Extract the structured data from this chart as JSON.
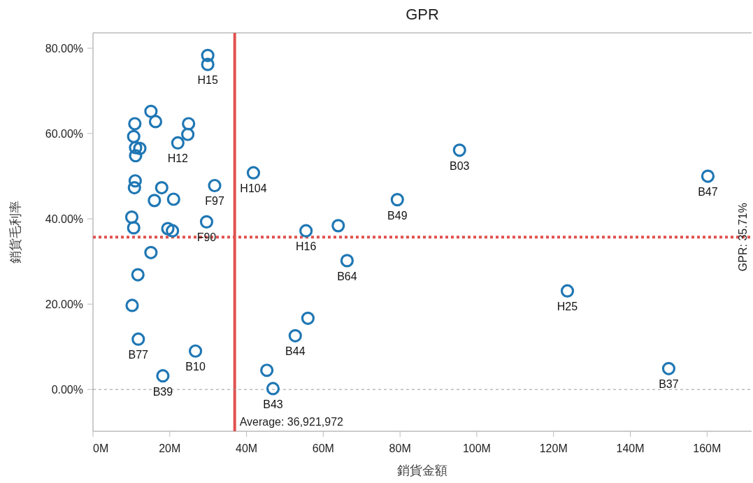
{
  "chart_data": {
    "type": "scatter",
    "title": "GPR",
    "xlabel": "銷貨金額",
    "ylabel": "銷貨毛利率",
    "marker": "circle",
    "grid": false,
    "xlim": [
      0,
      171600000
    ],
    "ylim": [
      -9.8,
      83.6
    ],
    "xticks": [
      {
        "value": 0,
        "label": "0M"
      },
      {
        "value": 20000000,
        "label": "20M"
      },
      {
        "value": 40000000,
        "label": "40M"
      },
      {
        "value": 60000000,
        "label": "60M"
      },
      {
        "value": 80000000,
        "label": "80M"
      },
      {
        "value": 100000000,
        "label": "100M"
      },
      {
        "value": 120000000,
        "label": "120M"
      },
      {
        "value": 140000000,
        "label": "140M"
      },
      {
        "value": 160000000,
        "label": "160M"
      }
    ],
    "yticks": [
      {
        "value": 0,
        "label": "0.00%"
      },
      {
        "value": 20,
        "label": "20.00%"
      },
      {
        "value": 40,
        "label": "40.00%"
      },
      {
        "value": 60,
        "label": "60.00%"
      },
      {
        "value": 80,
        "label": "80.00%"
      }
    ],
    "series": [
      {
        "color": "#1f77b4",
        "x": [
          29900000,
          29900000,
          15100000,
          16300000,
          10900000,
          24900000,
          24700000,
          10600000,
          22100000,
          11100000,
          12200000,
          11100000,
          11000000,
          10800000,
          17900000,
          16000000,
          21000000,
          31700000,
          41800000,
          10100000,
          10600000,
          29600000,
          19500000,
          20700000,
          15100000,
          11700000,
          10200000,
          11800000,
          26700000,
          18200000,
          95500000,
          79300000,
          63900000,
          55500000,
          66200000,
          56000000,
          52700000,
          45300000,
          46900000,
          160200000,
          123600000,
          150000000
        ],
        "values": [
          78.3,
          76.2,
          65.2,
          62.8,
          62.3,
          62.3,
          59.8,
          59.3,
          57.8,
          56.7,
          56.5,
          54.8,
          48.9,
          47.3,
          47.3,
          44.3,
          44.6,
          47.8,
          50.8,
          40.4,
          37.9,
          39.3,
          37.7,
          37.2,
          32.1,
          26.9,
          19.7,
          11.8,
          9.0,
          3.2,
          56.1,
          44.5,
          38.4,
          37.2,
          30.2,
          16.7,
          12.6,
          4.5,
          0.2,
          50.0,
          23.1,
          4.9
        ]
      }
    ],
    "ref_lines": [
      {
        "axis": "x",
        "value": 36921972,
        "label": "Average: 36,921,972",
        "color": "#e0524f",
        "line_style": "solid"
      },
      {
        "axis": "y",
        "value": 35.71,
        "label": "GPR: 35.71%",
        "color": "#e0524f",
        "line_style": "dotted"
      },
      {
        "axis": "y",
        "value": 0,
        "color": "#999999",
        "line_style": "dotted"
      }
    ],
    "annotations": [
      {
        "text": "H15",
        "x": 29900000,
        "y": 76.2
      },
      {
        "text": "H12",
        "x": 22100000,
        "y": 57.8
      },
      {
        "text": "F97",
        "x": 31700000,
        "y": 47.8
      },
      {
        "text": "H104",
        "x": 41800000,
        "y": 50.8
      },
      {
        "text": "F90",
        "x": 29600000,
        "y": 39.3
      },
      {
        "text": "B77",
        "x": 11800000,
        "y": 11.8
      },
      {
        "text": "B10",
        "x": 26700000,
        "y": 9.0
      },
      {
        "text": "B39",
        "x": 18200000,
        "y": 3.2
      },
      {
        "text": "B03",
        "x": 95500000,
        "y": 56.1
      },
      {
        "text": "B49",
        "x": 79300000,
        "y": 44.5
      },
      {
        "text": "H16",
        "x": 55500000,
        "y": 37.2
      },
      {
        "text": "B64",
        "x": 66200000,
        "y": 30.2
      },
      {
        "text": "B44",
        "x": 52700000,
        "y": 12.6
      },
      {
        "text": "B43",
        "x": 46900000,
        "y": 0.2
      },
      {
        "text": "B47",
        "x": 160200000,
        "y": 50.0
      },
      {
        "text": "H25",
        "x": 123600000,
        "y": 23.1
      },
      {
        "text": "B37",
        "x": 150000000,
        "y": 4.9
      }
    ]
  }
}
